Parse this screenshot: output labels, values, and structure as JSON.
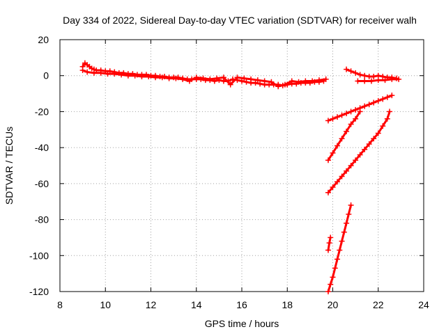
{
  "chart_data": {
    "type": "scatter",
    "title": "Day 334 of 2022, Sidereal Day-to-day VTEC variation (SDTVAR) for receiver walh",
    "xlabel": "GPS time / hours",
    "ylabel": "SDTVAR / TECUs",
    "xlim": [
      8,
      24
    ],
    "ylim": [
      -120,
      20
    ],
    "xticks": [
      8,
      10,
      12,
      14,
      16,
      18,
      20,
      22,
      24
    ],
    "yticks": [
      20,
      0,
      -20,
      -40,
      -60,
      -80,
      -100,
      -120
    ],
    "grid": true,
    "marker": "plus",
    "color": "#ff0000",
    "series": [
      {
        "points": [
          [
            9.0,
            5
          ],
          [
            9.1,
            7
          ],
          [
            9.2,
            6
          ],
          [
            9.3,
            5
          ],
          [
            9.4,
            4
          ],
          [
            9.5,
            3.5
          ],
          [
            9.6,
            3
          ],
          [
            9.8,
            3
          ],
          [
            10.0,
            2.5
          ],
          [
            10.2,
            2.5
          ],
          [
            10.4,
            2
          ],
          [
            10.6,
            1.5
          ],
          [
            10.8,
            1.5
          ],
          [
            11.0,
            1
          ],
          [
            11.2,
            1
          ],
          [
            11.4,
            0.5
          ],
          [
            11.6,
            0.5
          ],
          [
            11.8,
            0.5
          ],
          [
            12.0,
            0
          ],
          [
            12.2,
            0
          ],
          [
            12.4,
            -0.5
          ],
          [
            12.6,
            -0.5
          ],
          [
            12.8,
            -1
          ],
          [
            13.0,
            -1
          ],
          [
            13.2,
            -1
          ],
          [
            13.4,
            -1.5
          ],
          [
            13.6,
            -2
          ],
          [
            13.8,
            -2
          ],
          [
            14.0,
            -2
          ],
          [
            14.2,
            -2
          ],
          [
            14.4,
            -2.5
          ],
          [
            14.6,
            -2.5
          ],
          [
            14.8,
            -3
          ],
          [
            15.0,
            -2.5
          ],
          [
            15.2,
            -3
          ],
          [
            15.4,
            -3
          ],
          [
            15.6,
            -2
          ],
          [
            15.8,
            -2.5
          ],
          [
            16.0,
            -3
          ],
          [
            16.2,
            -3.5
          ],
          [
            16.4,
            -4
          ],
          [
            16.6,
            -4
          ],
          [
            16.8,
            -4.5
          ],
          [
            17.0,
            -5
          ],
          [
            17.2,
            -5
          ],
          [
            17.4,
            -5
          ],
          [
            17.6,
            -5
          ],
          [
            17.8,
            -5.5
          ],
          [
            18.0,
            -5
          ],
          [
            18.2,
            -4.5
          ],
          [
            18.4,
            -4.5
          ],
          [
            18.6,
            -4
          ],
          [
            18.8,
            -4
          ],
          [
            19.0,
            -4
          ],
          [
            19.2,
            -3.5
          ],
          [
            19.4,
            -3.5
          ],
          [
            19.6,
            -3
          ]
        ]
      },
      {
        "points": [
          [
            9.0,
            3
          ],
          [
            9.2,
            2
          ],
          [
            9.5,
            1.5
          ],
          [
            9.8,
            1.5
          ],
          [
            10.1,
            1
          ],
          [
            10.4,
            1
          ],
          [
            10.7,
            0.5
          ],
          [
            11.0,
            0
          ],
          [
            11.3,
            0
          ],
          [
            11.6,
            -0.5
          ],
          [
            11.9,
            -0.5
          ],
          [
            12.2,
            -1
          ],
          [
            12.5,
            -1
          ],
          [
            12.8,
            -1.5
          ],
          [
            13.1,
            -1.5
          ],
          [
            13.4,
            -2
          ],
          [
            13.7,
            -3
          ],
          [
            14.0,
            -1
          ],
          [
            14.3,
            -1.5
          ],
          [
            14.6,
            -2
          ],
          [
            14.9,
            -1.5
          ],
          [
            15.2,
            -1
          ],
          [
            15.5,
            -5
          ],
          [
            15.8,
            -1
          ],
          [
            16.1,
            -1.5
          ],
          [
            16.4,
            -2
          ],
          [
            16.7,
            -2.5
          ],
          [
            17.0,
            -3
          ],
          [
            17.3,
            -3.5
          ],
          [
            17.6,
            -6
          ],
          [
            17.9,
            -5
          ],
          [
            18.2,
            -3
          ],
          [
            18.5,
            -3.5
          ],
          [
            18.8,
            -3
          ],
          [
            19.1,
            -3
          ],
          [
            19.4,
            -2.5
          ],
          [
            19.7,
            -2
          ]
        ]
      },
      {
        "points": [
          [
            20.6,
            3.5
          ],
          [
            20.8,
            2.5
          ],
          [
            21.0,
            1.5
          ],
          [
            21.2,
            0.5
          ],
          [
            21.4,
            0
          ],
          [
            21.6,
            -0.5
          ],
          [
            21.8,
            -0.5
          ],
          [
            22.0,
            0
          ],
          [
            22.2,
            -0.5
          ],
          [
            22.4,
            -1
          ],
          [
            22.6,
            -1
          ],
          [
            22.8,
            -1.5
          ]
        ]
      },
      {
        "points": [
          [
            21.1,
            -3
          ],
          [
            21.4,
            -3
          ],
          [
            21.7,
            -3
          ],
          [
            22.0,
            -2.5
          ],
          [
            22.3,
            -2.5
          ],
          [
            22.6,
            -2
          ],
          [
            22.9,
            -2
          ]
        ]
      },
      {
        "points": [
          [
            19.8,
            -25
          ],
          [
            20.0,
            -24
          ],
          [
            20.2,
            -23
          ],
          [
            20.4,
            -22
          ],
          [
            20.6,
            -21
          ],
          [
            20.8,
            -20
          ],
          [
            21.0,
            -19
          ],
          [
            21.2,
            -18
          ],
          [
            21.4,
            -17
          ],
          [
            21.6,
            -16
          ],
          [
            21.8,
            -15
          ],
          [
            22.0,
            -14
          ],
          [
            22.2,
            -13
          ],
          [
            22.4,
            -12
          ],
          [
            22.6,
            -11
          ]
        ]
      },
      {
        "points": [
          [
            19.8,
            -47
          ],
          [
            20.0,
            -43
          ],
          [
            20.2,
            -39
          ],
          [
            20.4,
            -35
          ],
          [
            20.6,
            -31
          ],
          [
            20.8,
            -27
          ],
          [
            21.0,
            -24
          ],
          [
            21.2,
            -20
          ]
        ]
      },
      {
        "points": [
          [
            19.8,
            -65
          ],
          [
            20.0,
            -62
          ],
          [
            20.2,
            -59
          ],
          [
            20.4,
            -56
          ],
          [
            20.6,
            -53
          ],
          [
            20.8,
            -50
          ],
          [
            21.0,
            -47
          ],
          [
            21.2,
            -44
          ],
          [
            21.4,
            -41
          ],
          [
            21.6,
            -38
          ],
          [
            21.8,
            -35
          ],
          [
            22.0,
            -32
          ],
          [
            22.2,
            -28
          ],
          [
            22.4,
            -24
          ],
          [
            22.5,
            -20
          ]
        ]
      },
      {
        "points": [
          [
            19.8,
            -97
          ],
          [
            19.85,
            -93
          ],
          [
            19.9,
            -90
          ]
        ]
      },
      {
        "points": [
          [
            19.8,
            -120
          ],
          [
            19.9,
            -116
          ],
          [
            20.0,
            -112
          ],
          [
            20.1,
            -107
          ],
          [
            20.2,
            -102
          ],
          [
            20.3,
            -97
          ],
          [
            20.4,
            -92
          ],
          [
            20.5,
            -87
          ],
          [
            20.6,
            -82
          ],
          [
            20.7,
            -77
          ],
          [
            20.8,
            -72
          ]
        ]
      }
    ]
  }
}
